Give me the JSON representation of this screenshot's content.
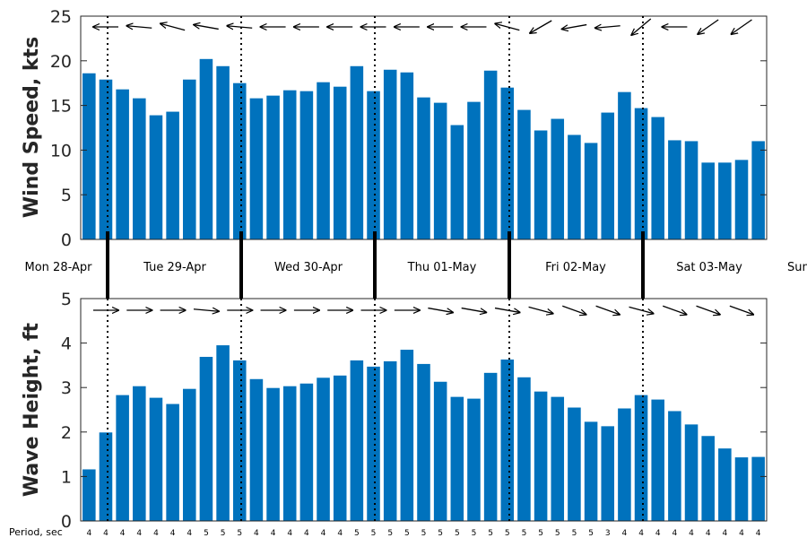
{
  "chart_data": [
    {
      "type": "bar",
      "name": "wind",
      "ylabel": "Wind Speed, kts",
      "ylim": [
        0,
        25
      ],
      "yticks": [
        0,
        5,
        10,
        15,
        20,
        25
      ],
      "color": "#0072bd",
      "values": [
        18.6,
        17.9,
        16.8,
        15.8,
        13.9,
        14.3,
        17.9,
        20.2,
        19.4,
        17.5,
        15.8,
        16.1,
        16.7,
        16.6,
        17.6,
        17.1,
        19.4,
        16.6,
        19.0,
        18.7,
        15.9,
        15.3,
        12.8,
        15.4,
        18.9,
        17.0,
        14.5,
        12.2,
        13.5,
        11.7,
        10.8,
        14.2,
        16.5,
        14.7,
        13.7,
        11.1,
        11.0,
        8.6,
        8.6,
        8.9,
        11.0
      ],
      "arrows": "wind direction arrows along top of panel"
    },
    {
      "type": "bar",
      "name": "wave",
      "ylabel": "Wave Height, ft",
      "ylim": [
        0,
        5
      ],
      "yticks": [
        0,
        1,
        2,
        3,
        4,
        5
      ],
      "color": "#0072bd",
      "values": [
        1.16,
        1.99,
        2.83,
        3.03,
        2.77,
        2.63,
        2.97,
        3.69,
        3.95,
        3.61,
        3.19,
        2.99,
        3.03,
        3.09,
        3.22,
        3.27,
        3.61,
        3.47,
        3.59,
        3.85,
        3.53,
        3.13,
        2.79,
        2.75,
        3.33,
        3.63,
        3.23,
        2.91,
        2.79,
        2.55,
        2.23,
        2.13,
        2.53,
        2.83,
        2.73,
        2.47,
        2.17,
        1.91,
        1.63,
        1.43,
        1.44
      ],
      "arrows": "wave direction arrows along top of panel"
    }
  ],
  "days": [
    "Mon 28-Apr",
    "Tue 29-Apr",
    "Wed 30-Apr",
    "Thu 01-May",
    "Fri 02-May",
    "Sat 03-May",
    "Sun"
  ],
  "period_label": "Period, sec",
  "periods": [
    "4",
    "4",
    "4",
    "4",
    "4",
    "4",
    "4",
    "5",
    "5",
    "5",
    "4",
    "4",
    "4",
    "4",
    "4",
    "4",
    "5",
    "5",
    "5",
    "5",
    "5",
    "5",
    "5",
    "5",
    "5",
    "5",
    "5",
    "5",
    "5",
    "5",
    "5",
    "3",
    "4",
    "4",
    "4",
    "4",
    "4",
    "4",
    "4",
    "4",
    "4"
  ],
  "wind_dir_deg": [
    180,
    180,
    180,
    185,
    175,
    195,
    200,
    190,
    200,
    185,
    180,
    180,
    180,
    180,
    180,
    180,
    180,
    180,
    180,
    180,
    180,
    180,
    180,
    180,
    185,
    195,
    155,
    150,
    170,
    170,
    170,
    175,
    140,
    140,
    180,
    180,
    145,
    145,
    145,
    145,
    175
  ],
  "wave_dir_deg": [
    10,
    0,
    0,
    0,
    0,
    0,
    0,
    5,
    10,
    0,
    0,
    0,
    0,
    0,
    0,
    0,
    0,
    0,
    0,
    0,
    5,
    10,
    10,
    10,
    10,
    10,
    15,
    15,
    20,
    20,
    20,
    20,
    15,
    15,
    20,
    20,
    20,
    20,
    20,
    20,
    25
  ]
}
